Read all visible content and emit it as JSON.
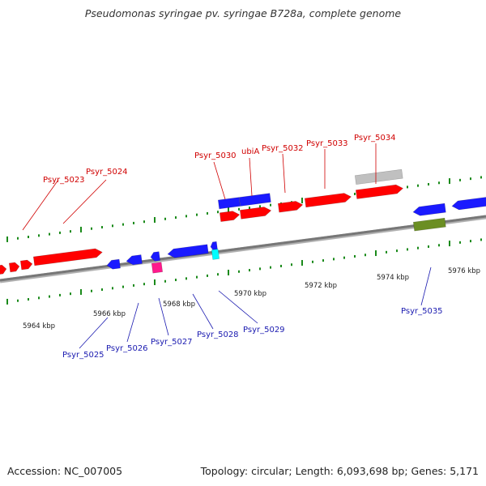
{
  "title": "Pseudomonas syringae pv. syringae B728a, complete genome",
  "footer": {
    "accession": "Accession: NC_007005",
    "summary": "Topology: circular; Length: 6,093,698 bp; Genes: 5,171"
  },
  "colors": {
    "red": "#ff0000",
    "blue": "#1a1aff",
    "magenta": "#ff1a8c",
    "cyan": "#00ffff",
    "grey": "#c0c0c0",
    "olive": "#6b8e23",
    "tick": "#1a8a1a",
    "red_label": "#d00000",
    "blue_label": "#1a1ab0"
  },
  "genes": {
    "top": [
      "Psyr_5023",
      "Psyr_5024",
      "Psyr_5030",
      "ubiA",
      "Psyr_5032",
      "Psyr_5033",
      "Psyr_5034"
    ],
    "bottom": [
      "Psyr_5025",
      "Psyr_5026",
      "Psyr_5027",
      "Psyr_5028",
      "Psyr_5029",
      "Psyr_5035"
    ]
  },
  "ruler": [
    "5964 kbp",
    "5966 kbp",
    "5968 kbp",
    "5970 kbp",
    "5972 kbp",
    "5974 kbp",
    "5976 kbp"
  ]
}
